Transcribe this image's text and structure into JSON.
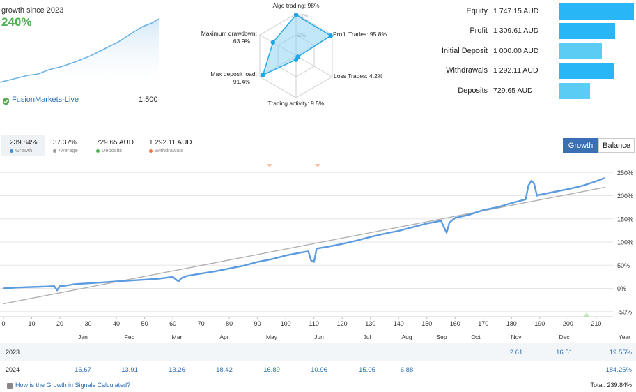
{
  "header": {
    "growth_since": "growth since 2023",
    "growth_value": "240%",
    "account_name": "FusionMarkets-Live",
    "leverage": "1:500"
  },
  "colors": {
    "accent_green": "#4caf50",
    "bar_dark": "#29b6f6",
    "bar_light": "#5bcdf5",
    "line_blue": "#5b9be0",
    "trend_gray": "#b0b0b0",
    "radar_fill": "#8fd4f2"
  },
  "radar": {
    "center_labels": [
      "100%",
      "50%"
    ],
    "axes": [
      {
        "label": "Algo trading: 98%",
        "value": 98
      },
      {
        "label": "Profit Trades: 95.8%",
        "value": 95.8
      },
      {
        "label": "Loss Trades: 4.2%",
        "value": 4.2
      },
      {
        "label": "Trading activity: 9.5%",
        "value": 9.5
      },
      {
        "label": "Max deposit load:",
        "label2": "91.4%",
        "value": 91.4
      },
      {
        "label": "Maximum drawdown:",
        "label2": "63.9%",
        "value": 63.9
      }
    ]
  },
  "summary": {
    "rows": [
      {
        "label": "Equity",
        "value": "1 747.15 AUD",
        "amount": 1747.15,
        "color": "dark"
      },
      {
        "label": "Profit",
        "value": "1 309.61 AUD",
        "amount": 1309.61,
        "color": "dark"
      },
      {
        "label": "Initial Deposit",
        "value": "1 000.00 AUD",
        "amount": 1000.0,
        "color": "light"
      },
      {
        "label": "Withdrawals",
        "value": "1 292.11 AUD",
        "amount": 1292.11,
        "color": "dark"
      },
      {
        "label": "Deposits",
        "value": "729.65 AUD",
        "amount": 729.65,
        "color": "light"
      }
    ]
  },
  "stats": [
    {
      "value": "239.84%",
      "label": "Growth",
      "color": "#3b8fd9"
    },
    {
      "value": "37.37%",
      "label": "Average",
      "color": "#999999"
    },
    {
      "value": "729.65 AUD",
      "label": "Deposits",
      "color": "#4caf50"
    },
    {
      "value": "1 292.11 AUD",
      "label": "Withdrawals",
      "color": "#ff6f3c"
    }
  ],
  "buttons": {
    "growth": "Growth",
    "balance": "Balance"
  },
  "chart_data": {
    "type": "line",
    "x_ticks": [
      "0",
      "10",
      "20",
      "30",
      "40",
      "50",
      "60",
      "70",
      "80",
      "90",
      "100",
      "110",
      "120",
      "130",
      "140",
      "150",
      "160",
      "170",
      "180",
      "190",
      "200",
      "210"
    ],
    "y_ticks": [
      "250%",
      "200%",
      "150%",
      "100%",
      "50%",
      "0%",
      "-50%"
    ],
    "ylim": [
      -60,
      260
    ],
    "xlim": [
      0,
      215
    ],
    "months": [
      "Jan",
      "Feb",
      "Mar",
      "Apr",
      "May",
      "Jun",
      "Jul",
      "Aug",
      "Sep",
      "Oct",
      "Nov",
      "Dec"
    ],
    "series": [
      {
        "name": "Growth",
        "x": [
          0,
          5,
          10,
          15,
          18,
          19,
          20,
          22,
          25,
          30,
          35,
          40,
          45,
          50,
          55,
          60,
          62,
          63,
          65,
          70,
          75,
          80,
          85,
          90,
          95,
          100,
          105,
          108,
          109,
          110,
          111,
          115,
          120,
          125,
          130,
          135,
          140,
          145,
          150,
          155,
          157,
          158,
          160,
          165,
          170,
          175,
          180,
          185,
          186,
          187,
          188,
          189,
          190,
          195,
          200,
          205,
          210,
          213
        ],
        "y": [
          0,
          2,
          3,
          4,
          5,
          -4,
          5,
          6,
          9,
          11,
          13,
          15,
          17,
          19,
          21,
          25,
          15,
          22,
          27,
          32,
          37,
          43,
          49,
          57,
          63,
          71,
          77,
          80,
          60,
          57,
          86,
          90,
          96,
          103,
          111,
          118,
          124,
          132,
          140,
          146,
          120,
          142,
          152,
          159,
          169,
          175,
          184,
          192,
          222,
          232,
          226,
          200,
          202,
          208,
          214,
          221,
          231,
          238
        ]
      },
      {
        "name": "Trend",
        "x": [
          0,
          213
        ],
        "y": [
          -33,
          218
        ]
      }
    ],
    "table": {
      "header_year": "Year",
      "rows": [
        {
          "year": "2023",
          "months": [
            "",
            "",
            "",
            "",
            "",
            "",
            "",
            "",
            "",
            "",
            "2.61",
            "16.51"
          ],
          "total": "19.55%"
        },
        {
          "year": "2024",
          "months": [
            "16.67",
            "13.91",
            "13.26",
            "18.42",
            "16.89",
            "10.96",
            "15.05",
            "6.88",
            "",
            "",
            "",
            ""
          ],
          "total": "184.26%"
        }
      ]
    }
  },
  "footer": {
    "link": "How is the Growth in Signals Calculated?",
    "total": "Total: 239.84%"
  }
}
